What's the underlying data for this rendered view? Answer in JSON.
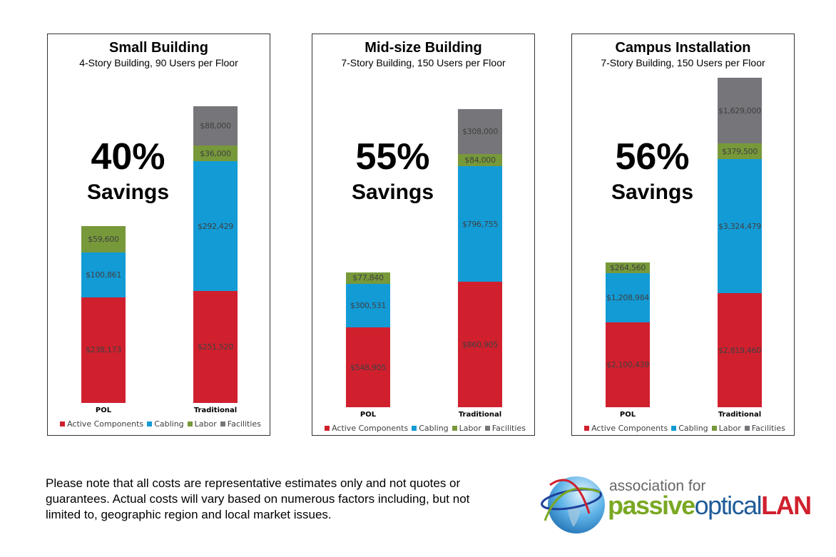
{
  "chart_data": [
    {
      "type": "bar",
      "stacked": true,
      "title": "Small Building",
      "subtitle": "4-Story Building, 90 Users per Floor",
      "savings_pct": "40%",
      "savings_label": "Savings",
      "categories": [
        "POL",
        "Traditional"
      ],
      "series": [
        {
          "name": "Active Components",
          "values": [
            238173,
            251520
          ],
          "labels": [
            "$238,173",
            "$251,520"
          ]
        },
        {
          "name": "Cabling",
          "values": [
            100861,
            292429
          ],
          "labels": [
            "$100,861",
            "$292,429"
          ]
        },
        {
          "name": "Labor",
          "values": [
            59600,
            36000
          ],
          "labels": [
            "$59,600",
            "$36,000"
          ]
        },
        {
          "name": "Facilities",
          "values": [
            0,
            88000
          ],
          "labels": [
            "",
            "$88,000"
          ]
        }
      ],
      "legend": "bottom"
    },
    {
      "type": "bar",
      "stacked": true,
      "title": "Mid-size Building",
      "subtitle": "7-Story Building, 150 Users per Floor",
      "savings_pct": "55%",
      "savings_label": "Savings",
      "categories": [
        "POL",
        "Traditional"
      ],
      "series": [
        {
          "name": "Active Components",
          "values": [
            548905,
            860905
          ],
          "labels": [
            "$548,905",
            "$860,905"
          ]
        },
        {
          "name": "Cabling",
          "values": [
            300531,
            796755
          ],
          "labels": [
            "$300,531",
            "$796,755"
          ]
        },
        {
          "name": "Labor",
          "values": [
            77840,
            84000
          ],
          "labels": [
            "$77,840",
            "$84,000"
          ]
        },
        {
          "name": "Facilities",
          "values": [
            0,
            308000
          ],
          "labels": [
            "",
            "$308,000"
          ]
        }
      ],
      "legend": "bottom"
    },
    {
      "type": "bar",
      "stacked": true,
      "title": "Campus Installation",
      "subtitle": "7-Story Building, 150 Users per Floor",
      "savings_pct": "56%",
      "savings_label": "Savings",
      "categories": [
        "POL",
        "Traditional"
      ],
      "series": [
        {
          "name": "Active Components",
          "values": [
            2100439,
            2819460
          ],
          "labels": [
            "$2,100,439",
            "$2,819,460"
          ]
        },
        {
          "name": "Cabling",
          "values": [
            1208984,
            3324479
          ],
          "labels": [
            "$1,208,984",
            "$3,324,479"
          ]
        },
        {
          "name": "Labor",
          "values": [
            264560,
            379500
          ],
          "labels": [
            "$264,560",
            "$379,500"
          ]
        },
        {
          "name": "Facilities",
          "values": [
            0,
            1629000
          ],
          "labels": [
            "",
            "$1,629,000"
          ]
        }
      ],
      "legend": "bottom"
    }
  ],
  "colors": {
    "Active Components": "#d0202e",
    "Cabling": "#139bd6",
    "Labor": "#77993a",
    "Facilities": "#76757a"
  },
  "note": "Please note that all costs are representative estimates only and not quotes or guarantees. Actual costs will vary based on numerous factors including, but not limited to, geographic region and local market issues.",
  "logo": {
    "line1": "association for",
    "passive": "passive",
    "optical": "optical",
    "lan": "LAN",
    "colors": {
      "passive": "#7aa823",
      "optical": "#1f5c99",
      "lan": "#d0202e"
    }
  }
}
